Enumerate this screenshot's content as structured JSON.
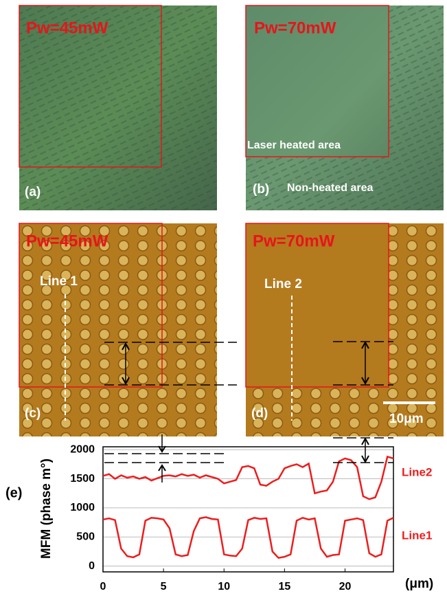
{
  "panels": [
    {
      "id": "(a)",
      "power": "Pw=45mW"
    },
    {
      "id": "(b)",
      "power": "Pw=70mW",
      "heated": "Laser heated area",
      "non_heated": "Non-heated area"
    },
    {
      "id": "(c)",
      "power": "Pw=45mW",
      "line": "Line 1"
    },
    {
      "id": "(d)",
      "power": "Pw=70mW",
      "line": "Line 2",
      "scale_bar": "10μm"
    }
  ],
  "chart_data": {
    "type": "line",
    "panel_label": "(e)",
    "ylabel": "MFM (phase m°)",
    "xlabel": "(μm)",
    "x": [
      0,
      0.5,
      1,
      1.5,
      2,
      2.5,
      3,
      3.5,
      4,
      4.5,
      5,
      5.5,
      6,
      6.5,
      7,
      7.5,
      8,
      8.5,
      9,
      9.5,
      10,
      10.5,
      11,
      11.5,
      12,
      12.5,
      13,
      13.5,
      14,
      14.5,
      15,
      15.5,
      16,
      16.5,
      17,
      17.5,
      18,
      18.5,
      19,
      19.5,
      20,
      20.5,
      21,
      21.5,
      22,
      22.5,
      23,
      23.5,
      24
    ],
    "series": [
      {
        "name": "Line2",
        "color": "#ee1c1c",
        "values": [
          1550,
          1580,
          1500,
          1560,
          1520,
          1540,
          1500,
          1530,
          1470,
          1510,
          1550,
          1560,
          1540,
          1580,
          1550,
          1570,
          1520,
          1560,
          1530,
          1500,
          1420,
          1450,
          1480,
          1700,
          1720,
          1680,
          1400,
          1380,
          1450,
          1500,
          1680,
          1720,
          1750,
          1700,
          1760,
          1250,
          1280,
          1300,
          1450,
          1800,
          1850,
          1820,
          1700,
          1200,
          1150,
          1180,
          1450,
          1880,
          1850
        ]
      },
      {
        "name": "Line1",
        "color": "#ee1c1c",
        "values": [
          800,
          820,
          790,
          300,
          170,
          150,
          200,
          780,
          830,
          820,
          800,
          650,
          200,
          170,
          190,
          600,
          820,
          840,
          810,
          800,
          200,
          180,
          170,
          300,
          790,
          830,
          810,
          820,
          250,
          140,
          160,
          200,
          780,
          830,
          800,
          820,
          300,
          160,
          190,
          200,
          780,
          800,
          820,
          790,
          220,
          160,
          200,
          780,
          830
        ]
      }
    ],
    "xlim": [
      0,
      24
    ],
    "xticks": [
      0,
      5,
      10,
      15,
      20
    ],
    "ylim": [
      -100,
      2050
    ],
    "yticks": [
      0,
      500,
      1000,
      1500,
      2000
    ],
    "grid": true
  }
}
